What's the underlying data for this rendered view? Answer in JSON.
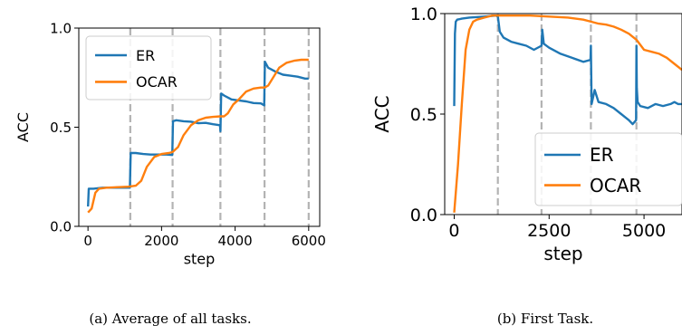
{
  "chart_data": [
    {
      "type": "line",
      "xlabel": "step",
      "ylabel": "ACC",
      "xlim": [
        -250,
        6300
      ],
      "ylim": [
        0.0,
        1.0
      ],
      "xticks": [
        "0",
        "2000",
        "4000",
        "6000"
      ],
      "xtick_values": [
        0,
        2000,
        4000,
        6000
      ],
      "yticks": [
        "0.0",
        "0.5",
        "1.0"
      ],
      "ytick_values": [
        0.0,
        0.5,
        1.0
      ],
      "task_boundaries": [
        1150,
        2300,
        3600,
        4800,
        6000
      ],
      "legend": "top-left",
      "caption": "(a) Average of all tasks.",
      "series": [
        {
          "name": "ER",
          "color": "#1f77b4",
          "x": [
            0,
            20,
            50,
            150,
            400,
            700,
            1000,
            1140,
            1160,
            1300,
            1500,
            1700,
            1900,
            2100,
            2290,
            2310,
            2400,
            2600,
            2800,
            3000,
            3200,
            3400,
            3590,
            3600,
            3620,
            3700,
            3900,
            4100,
            4300,
            4500,
            4700,
            4790,
            4810,
            4900,
            5100,
            5300,
            5500,
            5700,
            5900,
            6000
          ],
          "y": [
            0.1,
            0.19,
            0.19,
            0.19,
            0.195,
            0.195,
            0.195,
            0.195,
            0.37,
            0.37,
            0.365,
            0.362,
            0.362,
            0.363,
            0.36,
            0.53,
            0.535,
            0.53,
            0.528,
            0.52,
            0.522,
            0.515,
            0.51,
            0.48,
            0.67,
            0.66,
            0.64,
            0.635,
            0.63,
            0.622,
            0.62,
            0.61,
            0.83,
            0.8,
            0.78,
            0.765,
            0.76,
            0.755,
            0.745,
            0.745
          ]
        },
        {
          "name": "OCAR",
          "color": "#ff7f0e",
          "x": [
            0,
            100,
            200,
            300,
            500,
            700,
            900,
            1100,
            1300,
            1450,
            1600,
            1800,
            2000,
            2200,
            2300,
            2450,
            2600,
            2800,
            3000,
            3200,
            3400,
            3600,
            3700,
            3800,
            3950,
            4100,
            4300,
            4500,
            4700,
            4800,
            4900,
            5000,
            5200,
            5400,
            5600,
            5800,
            6000
          ],
          "y": [
            0.07,
            0.09,
            0.17,
            0.19,
            0.195,
            0.197,
            0.198,
            0.2,
            0.205,
            0.23,
            0.3,
            0.35,
            0.365,
            0.37,
            0.375,
            0.4,
            0.46,
            0.51,
            0.535,
            0.548,
            0.552,
            0.555,
            0.555,
            0.57,
            0.615,
            0.64,
            0.68,
            0.695,
            0.7,
            0.7,
            0.71,
            0.74,
            0.8,
            0.825,
            0.835,
            0.84,
            0.84
          ]
        }
      ]
    },
    {
      "type": "line",
      "xlabel": "step",
      "ylabel": "ACC",
      "xlim": [
        -250,
        6000
      ],
      "ylim": [
        0.0,
        1.0
      ],
      "xticks": [
        "0",
        "2500",
        "5000"
      ],
      "xtick_values": [
        0,
        2500,
        5000
      ],
      "yticks": [
        "0.0",
        "0.5",
        "1.0"
      ],
      "ytick_values": [
        0.0,
        0.5,
        1.0
      ],
      "task_boundaries": [
        1150,
        2300,
        3600,
        4800
      ],
      "legend": "lower-right",
      "caption": "(b) First Task.",
      "series": [
        {
          "name": "ER",
          "color": "#1f77b4",
          "x": [
            0,
            20,
            40,
            80,
            200,
            400,
            800,
            1100,
            1150,
            1200,
            1300,
            1500,
            1700,
            1900,
            2100,
            2300,
            2320,
            2360,
            2500,
            2800,
            3100,
            3400,
            3590,
            3600,
            3620,
            3700,
            3800,
            4000,
            4200,
            4400,
            4600,
            4700,
            4790,
            4800,
            4810,
            4830,
            4900,
            5100,
            5300,
            5500,
            5700,
            5800,
            5900,
            6000
          ],
          "y": [
            0.54,
            0.9,
            0.96,
            0.97,
            0.975,
            0.98,
            0.985,
            0.99,
            0.985,
            0.91,
            0.88,
            0.86,
            0.85,
            0.84,
            0.82,
            0.84,
            0.92,
            0.85,
            0.83,
            0.8,
            0.78,
            0.76,
            0.77,
            0.84,
            0.55,
            0.62,
            0.56,
            0.55,
            0.53,
            0.5,
            0.47,
            0.45,
            0.47,
            0.84,
            0.63,
            0.56,
            0.54,
            0.53,
            0.55,
            0.54,
            0.55,
            0.56,
            0.55,
            0.55
          ]
        },
        {
          "name": "OCAR",
          "color": "#ff7f0e",
          "x": [
            0,
            100,
            200,
            300,
            400,
            500,
            600,
            800,
            1000,
            1200,
            1500,
            2000,
            2500,
            3000,
            3200,
            3400,
            3600,
            3800,
            4000,
            4200,
            4400,
            4600,
            4800,
            5000,
            5200,
            5400,
            5600,
            5800,
            6000
          ],
          "y": [
            0.01,
            0.25,
            0.55,
            0.82,
            0.92,
            0.96,
            0.97,
            0.98,
            0.99,
            0.99,
            0.99,
            0.99,
            0.985,
            0.98,
            0.975,
            0.97,
            0.96,
            0.95,
            0.945,
            0.935,
            0.92,
            0.9,
            0.87,
            0.82,
            0.81,
            0.8,
            0.78,
            0.75,
            0.72
          ]
        }
      ]
    }
  ]
}
